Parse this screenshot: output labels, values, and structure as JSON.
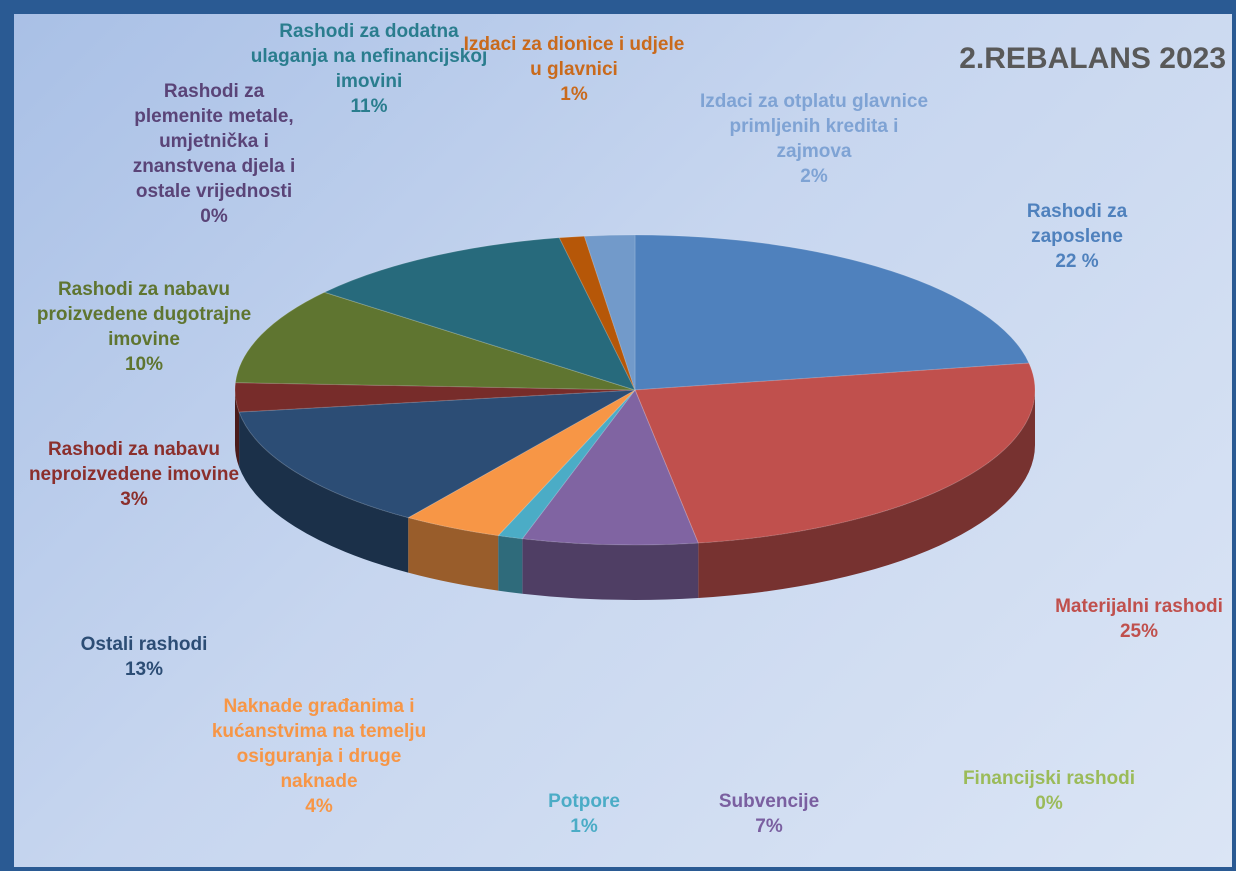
{
  "chart_data": {
    "type": "pie",
    "title": "2.REBALANS 2023",
    "categories": [
      "Rashodi za zaposlene",
      "Materijalni rashodi",
      "Financijski rashodi",
      "Subvencije",
      "Potpore",
      "Naknade građanima i kućanstvima na temelju osiguranja i druge naknade",
      "Ostali rashodi",
      "Rashodi za nabavu neproizvedene imovine",
      "Rashodi za nabavu proizvedene dugotrajne imovine",
      "Rashodi za plemenite metale, umjetnička i znanstvena djela i ostale vrijednosti",
      "Rashodi za dodatna ulaganja na nefinancijskoj imovini",
      "Izdaci za dionice i udjele u glavnici",
      "Izdaci za otplatu glavnice primljenih kredita i zajmova"
    ],
    "values": [
      22,
      25,
      0,
      7,
      1,
      4,
      13,
      3,
      10,
      0,
      11,
      1,
      2
    ],
    "value_labels": [
      "22 %",
      "25%",
      "0%",
      "7%",
      "1%",
      "4%",
      "13%",
      "3%",
      "10%",
      "0%",
      "11%",
      "1%",
      "2%"
    ],
    "colors": [
      "#4f81bd",
      "#c0504d",
      "#9bbb59",
      "#8064a2",
      "#4bacc6",
      "#f79646",
      "#2c4d75",
      "#772c2a",
      "#5f7530",
      "#4d3b62",
      "#276a7c",
      "#b65708",
      "#729aca"
    ]
  }
}
